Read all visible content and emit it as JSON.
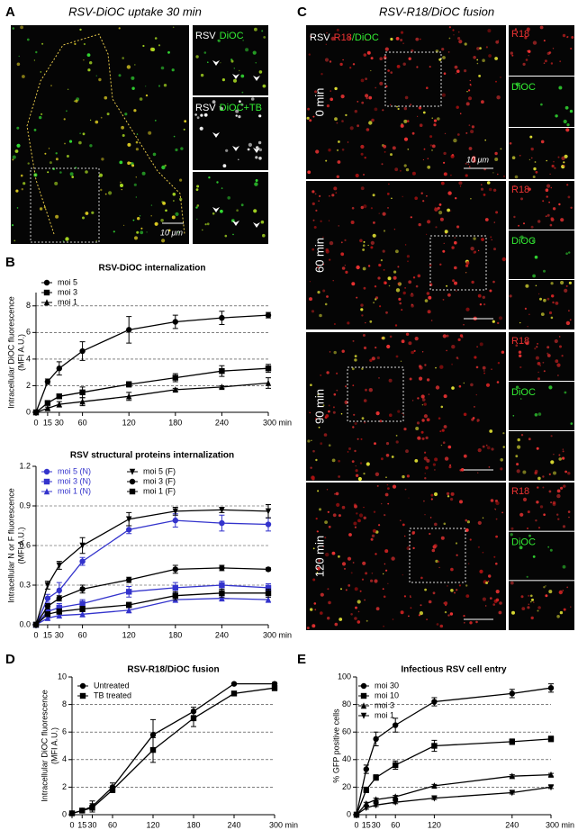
{
  "panel_labels": [
    "A",
    "B",
    "C",
    "D",
    "E"
  ],
  "panel_a": {
    "title": "RSV-DiOC uptake 30 min",
    "inset_1": [
      "RSV",
      "DiOC"
    ],
    "inset_2": [
      "RSV",
      "DiOC+TB"
    ],
    "scale_bar": "10 μm"
  },
  "panel_c": {
    "title": "RSV-R18/DiOC fusion",
    "header": [
      "RSV",
      "R18",
      "/DiOC"
    ],
    "scale_bar": "10 μm",
    "rows": [
      {
        "time": "0 min",
        "channels": [
          "R18",
          "DiOC"
        ]
      },
      {
        "time": "60 min",
        "channels": [
          "R18",
          "DiOC"
        ]
      },
      {
        "time": "90 min",
        "channels": [
          "R18",
          "DiOC"
        ]
      },
      {
        "time": "120 min",
        "channels": [
          "R18",
          "DiOC"
        ]
      }
    ]
  },
  "chart_data": [
    {
      "type": "line",
      "title": "RSV-DiOC internalization",
      "ylabel": [
        "Intracellular DiOC fluorescence",
        "(MFI A.U.)"
      ],
      "x": [
        0,
        15,
        30,
        60,
        120,
        180,
        240,
        300
      ],
      "xlim": [
        0,
        300
      ],
      "xticks": [
        0,
        15,
        30,
        60,
        120,
        180,
        240,
        {
          "value": 300,
          "label": "300 min"
        }
      ],
      "ylim": [
        0,
        9
      ],
      "yticks": [
        0,
        2,
        4,
        6,
        8
      ],
      "grid": true,
      "legend": "upper left",
      "legend_columns": 1,
      "series": [
        {
          "name": "moi 5",
          "color": "#000000",
          "marker": "circle",
          "values": [
            0,
            2.3,
            3.3,
            4.6,
            6.2,
            6.8,
            7.1,
            7.3
          ],
          "errors": [
            0,
            0.2,
            0.5,
            0.7,
            1.0,
            0.5,
            0.5,
            0.2
          ]
        },
        {
          "name": "moi 3",
          "color": "#000000",
          "marker": "square",
          "values": [
            0,
            0.7,
            1.2,
            1.5,
            2.1,
            2.6,
            3.1,
            3.3
          ],
          "errors": [
            0,
            0.1,
            0.15,
            0.4,
            0.2,
            0.3,
            0.4,
            0.3
          ]
        },
        {
          "name": "moi 1",
          "color": "#000000",
          "marker": "triangle-up",
          "values": [
            0,
            0.3,
            0.6,
            0.8,
            1.2,
            1.7,
            1.9,
            2.2
          ],
          "errors": [
            0,
            0.1,
            0.2,
            0.3,
            0.3,
            0.1,
            0.1,
            0.4
          ]
        }
      ]
    },
    {
      "type": "line",
      "title": "RSV structural proteins internalization",
      "ylabel": [
        "Intracellular N or F fluorescence",
        "(MFI A.U.)"
      ],
      "x": [
        0,
        15,
        30,
        60,
        120,
        180,
        240,
        300
      ],
      "xlim": [
        0,
        300
      ],
      "xticks": [
        0,
        15,
        30,
        60,
        120,
        180,
        240,
        {
          "value": 300,
          "label": "300 min"
        }
      ],
      "ylim": [
        0,
        1.2
      ],
      "yticks": [
        {
          "value": 0,
          "label": "0.0"
        },
        0.3,
        0.6,
        0.9,
        1.2
      ],
      "grid": true,
      "legend": "upper left",
      "legend_columns": 2,
      "series": [
        {
          "name": "moi 5 (N)",
          "color": "#3333cc",
          "marker": "circle",
          "values": [
            0,
            0.2,
            0.26,
            0.48,
            0.72,
            0.79,
            0.77,
            0.76
          ],
          "errors": [
            0,
            0.03,
            0.06,
            0.03,
            0.03,
            0.05,
            0.06,
            0.05
          ]
        },
        {
          "name": "moi 3 (N)",
          "color": "#3333cc",
          "marker": "square",
          "values": [
            0,
            0.1,
            0.13,
            0.16,
            0.25,
            0.28,
            0.3,
            0.28
          ],
          "errors": [
            0,
            0.02,
            0.03,
            0.03,
            0.04,
            0.04,
            0.03,
            0.03
          ]
        },
        {
          "name": "moi 1 (N)",
          "color": "#3333cc",
          "marker": "triangle-up",
          "values": [
            0,
            0.05,
            0.07,
            0.08,
            0.11,
            0.19,
            0.2,
            0.19
          ],
          "errors": [
            0,
            0.01,
            0.02,
            0.02,
            0.02,
            0.02,
            0.02,
            0.02
          ]
        },
        {
          "name": "moi 5 (F)",
          "color": "#000000",
          "marker": "triangle-down",
          "values": [
            0,
            0.3,
            0.45,
            0.6,
            0.8,
            0.86,
            0.87,
            0.86
          ],
          "errors": [
            0,
            0.03,
            0.03,
            0.06,
            0.05,
            0.03,
            0.02,
            0.05
          ]
        },
        {
          "name": "moi 3 (F)",
          "color": "#000000",
          "marker": "circle",
          "values": [
            0,
            0.14,
            0.2,
            0.27,
            0.34,
            0.42,
            0.43,
            0.42
          ],
          "errors": [
            0,
            0.02,
            0.02,
            0.03,
            0.02,
            0.03,
            0.02,
            0.01
          ]
        },
        {
          "name": "moi 1 (F)",
          "color": "#000000",
          "marker": "square",
          "values": [
            0,
            0.08,
            0.1,
            0.12,
            0.15,
            0.22,
            0.24,
            0.24
          ],
          "errors": [
            0,
            0.01,
            0.02,
            0.02,
            0.02,
            0.03,
            0.03,
            0.03
          ]
        }
      ]
    },
    {
      "type": "line",
      "title": "RSV-R18/DiOC fusion",
      "ylabel": [
        "Intracellular DiOC fluorescence",
        "(MFI A.U.)"
      ],
      "x": [
        0,
        15,
        30,
        60,
        120,
        180,
        240,
        300
      ],
      "xlim": [
        0,
        300
      ],
      "xticks": [
        0,
        15,
        30,
        60,
        120,
        180,
        240,
        {
          "value": 300,
          "label": "300 min"
        }
      ],
      "ylim": [
        0,
        10
      ],
      "yticks": [
        0,
        2,
        4,
        6,
        8,
        10
      ],
      "grid": true,
      "legend": "upper left",
      "legend_columns": 1,
      "series": [
        {
          "name": "Untreated",
          "color": "#000000",
          "marker": "circle",
          "values": [
            0.1,
            0.3,
            0.6,
            2.0,
            5.8,
            7.5,
            9.5,
            9.5
          ],
          "errors": [
            0,
            0.1,
            0.4,
            0.3,
            1.1,
            0.3,
            0,
            0.1
          ]
        },
        {
          "name": "TB treated",
          "color": "#000000",
          "marker": "square",
          "values": [
            0.1,
            0.3,
            0.5,
            1.8,
            4.7,
            7.0,
            8.8,
            9.2
          ],
          "errors": [
            0,
            0.1,
            0.3,
            0.2,
            0.9,
            0.6,
            0.1,
            0.2
          ]
        }
      ]
    },
    {
      "type": "line",
      "title": "Infectious RSV cell entry",
      "ylabel": [
        "% GFP positive cells"
      ],
      "x": [
        0,
        15,
        30,
        60,
        120,
        240,
        300
      ],
      "xlim": [
        0,
        300
      ],
      "xticks": [
        0,
        15,
        30,
        60,
        120,
        240,
        {
          "value": 300,
          "label": "300 min"
        }
      ],
      "ylim": [
        0,
        100
      ],
      "yticks": [
        0,
        20,
        40,
        60,
        80,
        100
      ],
      "grid": true,
      "legend": "upper left",
      "legend_columns": 1,
      "series": [
        {
          "name": "moi 30",
          "color": "#000000",
          "marker": "circle",
          "values": [
            0,
            33,
            55,
            65,
            82,
            88,
            92
          ],
          "errors": [
            0,
            3,
            5,
            5,
            3,
            3,
            3
          ]
        },
        {
          "name": "moi 10",
          "color": "#000000",
          "marker": "square",
          "values": [
            0,
            18,
            27,
            36,
            50,
            53,
            55
          ],
          "errors": [
            0,
            2,
            2,
            3,
            4,
            2,
            2
          ]
        },
        {
          "name": "moi 3",
          "color": "#000000",
          "marker": "triangle-up",
          "values": [
            0,
            8,
            11,
            13,
            21,
            28,
            29
          ],
          "errors": [
            0,
            1,
            1,
            1,
            1,
            1,
            1
          ]
        },
        {
          "name": "moi 1",
          "color": "#000000",
          "marker": "triangle-down",
          "values": [
            0,
            5,
            7,
            9,
            12,
            16,
            20
          ],
          "errors": [
            0,
            1,
            1,
            1,
            1,
            1,
            1
          ]
        }
      ]
    }
  ]
}
